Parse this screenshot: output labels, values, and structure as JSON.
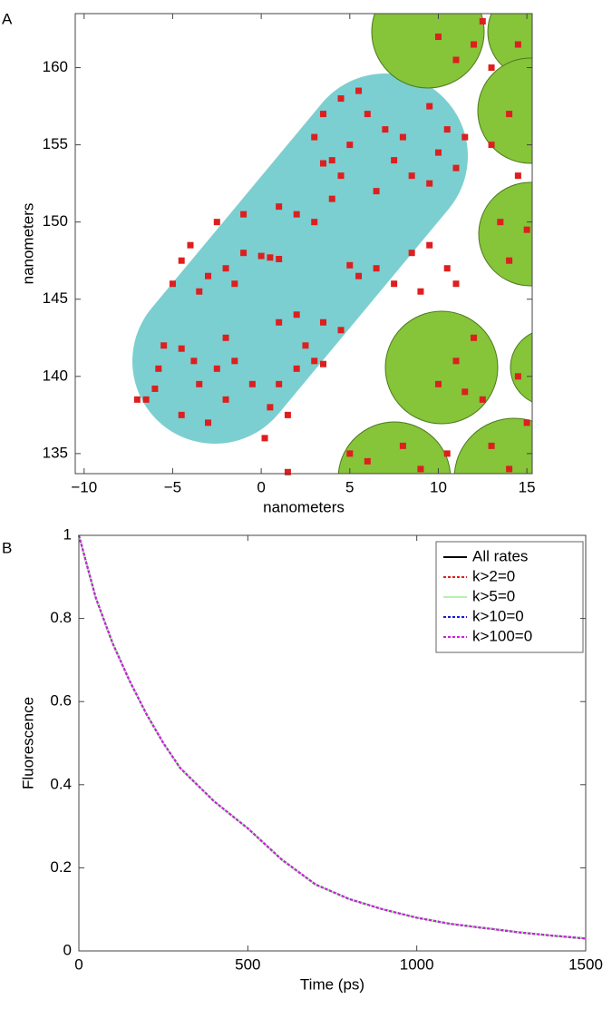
{
  "chart_data": [
    {
      "type": "scatter",
      "panel": "A",
      "xlabel": "nanometers",
      "ylabel": "nanometers",
      "color": "#dd1f1f",
      "xlim": [
        -10.5,
        15.3
      ],
      "ylim": [
        133.7,
        163.5
      ],
      "xticks": [
        {
          "value": -10,
          "label": "−10"
        },
        {
          "value": -5,
          "label": "−5"
        },
        0,
        5,
        10,
        15
      ],
      "yticks": [
        135,
        140,
        145,
        150,
        155,
        160
      ],
      "x": [
        -6.5,
        -6,
        -5.8,
        -5.5,
        -4.5,
        -3.8,
        -3.5,
        -2.5,
        -2,
        -1.5,
        -0.5,
        0.5,
        1,
        1.5,
        0.2,
        2,
        3,
        3.5,
        2.5,
        -4.5,
        -3,
        -2,
        -5,
        -4.5,
        -4,
        -3.5,
        -3,
        -2,
        -1,
        -1.5,
        0,
        0.5,
        1,
        -2.5,
        -1,
        1,
        2,
        3,
        4,
        3.5,
        4,
        4.5,
        5,
        3,
        3.5,
        4.5,
        5.5,
        6,
        7,
        8,
        7.5,
        8.5,
        9.5,
        10,
        11,
        11.5,
        10.5,
        9.5,
        6.5,
        5,
        5.5,
        6.5,
        7.5,
        8.5,
        9.5,
        10.5,
        11,
        9,
        3.5,
        4.5,
        2,
        1,
        1.5,
        -7,
        10,
        11,
        12,
        12.5,
        13,
        14.5,
        14,
        13,
        14.5,
        13.5,
        15,
        14,
        11,
        12,
        10,
        12.5,
        11.5,
        14.5,
        15,
        8,
        6,
        9,
        10.5,
        13,
        14,
        5
      ],
      "values": [
        138.5,
        139.2,
        140.5,
        142,
        141.8,
        141,
        139.5,
        140.5,
        142.5,
        141,
        139.5,
        138,
        139.5,
        137.5,
        136,
        140.5,
        141,
        140.8,
        142,
        137.5,
        137,
        138.5,
        146,
        147.5,
        148.5,
        145.5,
        146.5,
        147,
        148,
        146,
        147.8,
        147.7,
        147.6,
        150,
        150.5,
        151,
        150.5,
        150,
        151.5,
        153.8,
        154,
        153,
        155,
        155.5,
        157,
        158,
        158.5,
        157,
        156,
        155.5,
        154,
        153,
        152.5,
        154.5,
        153.5,
        155.5,
        156,
        157.5,
        152,
        147.2,
        146.5,
        147,
        146,
        148,
        148.5,
        147,
        146,
        145.5,
        143.5,
        143,
        144,
        143.5,
        133.8,
        138.5,
        162,
        160.5,
        161.5,
        163,
        160,
        161.5,
        157,
        155,
        153,
        150,
        149.5,
        147.5,
        141,
        142.5,
        139.5,
        138.5,
        139,
        140,
        137,
        135.5,
        134.5,
        134,
        135,
        135.5,
        134,
        135
      ]
    },
    {
      "type": "line",
      "panel": "B",
      "xlabel": "Time (ps)",
      "ylabel": "Fluorescence",
      "xlim": [
        0,
        1500
      ],
      "ylim": [
        0,
        1
      ],
      "xticks": [
        0,
        500,
        1000,
        1500
      ],
      "yticks": [
        0,
        0.2,
        0.4,
        0.6,
        0.8,
        1
      ],
      "x": [
        0,
        50,
        100,
        150,
        200,
        250,
        300,
        350,
        400,
        500,
        600,
        700,
        800,
        900,
        1000,
        1100,
        1200,
        1300,
        1400,
        1500
      ],
      "series": [
        {
          "name": "All rates",
          "color": "#000000",
          "dash": "",
          "values": [
            1,
            0.85,
            0.74,
            0.65,
            0.57,
            0.5,
            0.44,
            0.4,
            0.36,
            0.295,
            0.22,
            0.16,
            0.125,
            0.1,
            0.08,
            0.065,
            0.055,
            0.045,
            0.037,
            0.03
          ]
        },
        {
          "name": "k>2=0",
          "color": "#e02020",
          "dash": "3,2",
          "values": [
            1,
            0.85,
            0.74,
            0.65,
            0.57,
            0.5,
            0.44,
            0.4,
            0.36,
            0.295,
            0.22,
            0.16,
            0.125,
            0.1,
            0.08,
            0.065,
            0.055,
            0.045,
            0.037,
            0.03
          ]
        },
        {
          "name": "k>5=0",
          "color": "#b8f0b0",
          "dash": "",
          "values": [
            1,
            0.85,
            0.74,
            0.65,
            0.57,
            0.5,
            0.44,
            0.4,
            0.36,
            0.295,
            0.22,
            0.16,
            0.125,
            0.1,
            0.08,
            0.065,
            0.055,
            0.045,
            0.037,
            0.03
          ]
        },
        {
          "name": "k>10=0",
          "color": "#1a1ad8",
          "dash": "3,2",
          "values": [
            1,
            0.85,
            0.74,
            0.65,
            0.57,
            0.5,
            0.44,
            0.4,
            0.36,
            0.295,
            0.22,
            0.16,
            0.125,
            0.1,
            0.08,
            0.065,
            0.055,
            0.045,
            0.037,
            0.03
          ]
        },
        {
          "name": "k>100=0",
          "color": "#d020d8",
          "dash": "3,2",
          "values": [
            1,
            0.85,
            0.74,
            0.65,
            0.57,
            0.5,
            0.44,
            0.4,
            0.36,
            0.295,
            0.22,
            0.16,
            0.125,
            0.1,
            0.08,
            0.065,
            0.055,
            0.045,
            0.037,
            0.03
          ]
        }
      ]
    }
  ]
}
